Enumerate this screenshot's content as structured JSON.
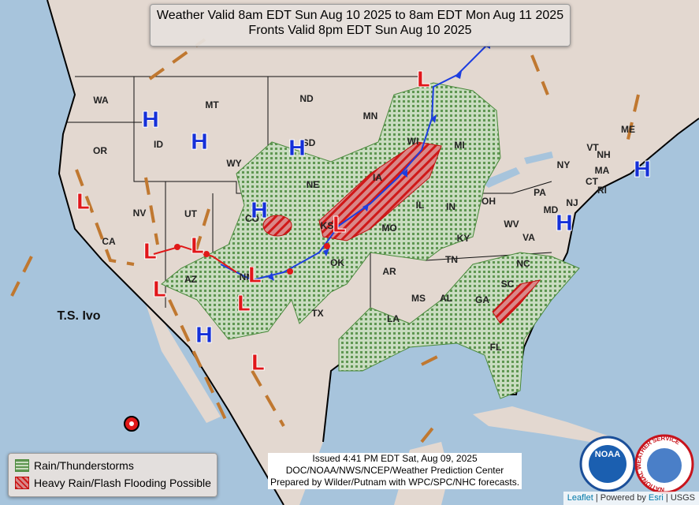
{
  "header": {
    "line1": "Weather Valid 8am EDT Sun Aug 10 2025 to 8am EDT Mon Aug 11 2025",
    "line2": "Fronts Valid 8pm EDT Sun Aug 10 2025"
  },
  "states": [
    "WA",
    "OR",
    "CA",
    "NV",
    "ID",
    "MT",
    "WY",
    "UT",
    "AZ",
    "NM",
    "CO",
    "ND",
    "SD",
    "NE",
    "KS",
    "OK",
    "TX",
    "MN",
    "IA",
    "MO",
    "AR",
    "LA",
    "WI",
    "IL",
    "MI",
    "IN",
    "OH",
    "KY",
    "TN",
    "MS",
    "AL",
    "GA",
    "FL",
    "SC",
    "NC",
    "VA",
    "WV",
    "PA",
    "NY",
    "MD",
    "NJ",
    "VT",
    "NH",
    "MA",
    "CT",
    "RI",
    "ME"
  ],
  "highs": [
    "H",
    "H",
    "H",
    "H",
    "H",
    "H",
    "H"
  ],
  "lows": [
    "L",
    "L",
    "L",
    "L",
    "L",
    "L",
    "L",
    "L",
    "L"
  ],
  "storm_label": "T.S. Ivo",
  "legend": {
    "items": [
      "Rain/Thunderstorms",
      "Heavy Rain/Flash Flooding Possible"
    ]
  },
  "issued": {
    "line1": "Issued  4:41 PM EDT Sat, Aug 09, 2025",
    "line2": "DOC/NOAA/NWS/NCEP/Weather Prediction Center",
    "line3": "Prepared by Wilder/Putnam with WPC/SPC/NHC forecasts."
  },
  "logos": {
    "noaa": "NOAA",
    "nws": "NATIONAL WEATHER SERVICE"
  },
  "attribution": {
    "leaflet": "Leaflet",
    "powered": "| Powered by",
    "esri": "Esri",
    "usgs": "| USGS"
  }
}
